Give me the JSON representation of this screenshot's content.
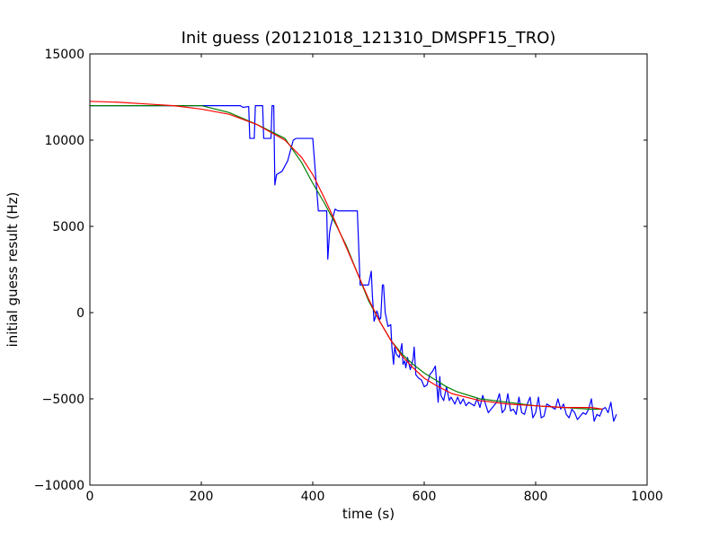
{
  "chart_data": {
    "type": "line",
    "title": "Init guess (20121018_121310_DMSPF15_TRO)",
    "xlabel": "time (s)",
    "ylabel": "initial guess result (Hz)",
    "xlim": [
      0,
      1000
    ],
    "ylim": [
      -10000,
      15000
    ],
    "xticks": [
      0,
      200,
      400,
      600,
      800,
      1000
    ],
    "yticks": [
      -10000,
      -5000,
      0,
      5000,
      10000,
      15000
    ],
    "xtick_labels": [
      "0",
      "200",
      "400",
      "600",
      "800",
      "1000"
    ],
    "ytick_labels": [
      "−10000",
      "−5000",
      "0",
      "5000",
      "10000",
      "15000"
    ],
    "grid": false,
    "legend": "none",
    "series": [
      {
        "color": "#0000ff",
        "x": [
          0,
          50,
          100,
          150,
          200,
          250,
          270,
          275,
          285,
          287,
          295,
          297,
          310,
          312,
          325,
          327,
          330,
          332,
          335,
          345,
          355,
          365,
          370,
          375,
          380,
          390,
          400,
          405,
          410,
          420,
          425,
          427,
          430,
          432,
          440,
          445,
          450,
          460,
          470,
          480,
          485,
          490,
          495,
          500,
          505,
          507,
          510,
          512,
          515,
          520,
          522,
          525,
          527,
          530,
          535,
          540,
          542,
          545,
          547,
          550,
          555,
          560,
          562,
          565,
          567,
          570,
          575,
          580,
          582,
          585,
          590,
          595,
          600,
          605,
          610,
          615,
          620,
          625,
          628,
          630,
          635,
          640,
          645,
          648,
          650,
          655,
          660,
          665,
          670,
          675,
          680,
          685,
          690,
          695,
          700,
          705,
          710,
          715,
          720,
          725,
          730,
          735,
          740,
          745,
          750,
          755,
          760,
          765,
          770,
          775,
          780,
          785,
          790,
          795,
          800,
          805,
          810,
          815,
          820,
          825,
          830,
          835,
          840,
          845,
          850,
          855,
          860,
          865,
          870,
          875,
          880,
          885,
          890,
          895,
          900,
          905,
          910,
          915,
          920,
          925,
          930,
          935,
          940,
          945
        ],
        "y": [
          12000,
          12000,
          12000,
          12000,
          12000,
          12000,
          12000,
          11900,
          11950,
          10100,
          10100,
          12000,
          12000,
          10100,
          10100,
          12000,
          12000,
          7400,
          8000,
          8200,
          8800,
          10000,
          10100,
          10100,
          10100,
          10100,
          10100,
          8000,
          5900,
          5900,
          5900,
          3100,
          4600,
          5000,
          6000,
          5900,
          5900,
          5900,
          5900,
          5900,
          1600,
          1600,
          1600,
          1600,
          2400,
          1000,
          -500,
          -300,
          100,
          -400,
          -300,
          1600,
          1600,
          0,
          -800,
          -700,
          -2000,
          -3000,
          -2000,
          -2400,
          -2600,
          -1800,
          -3000,
          -2800,
          -3200,
          -2600,
          -3300,
          -2700,
          -2000,
          -3600,
          -3800,
          -3900,
          -4300,
          -4200,
          -3600,
          -3400,
          -3100,
          -5200,
          -3700,
          -4800,
          -5100,
          -4300,
          -5100,
          -4900,
          -5000,
          -5300,
          -4900,
          -5300,
          -5000,
          -5400,
          -5200,
          -5300,
          -5400,
          -5000,
          -5500,
          -4800,
          -5300,
          -5800,
          -5600,
          -5400,
          -5200,
          -4700,
          -5800,
          -5600,
          -4700,
          -5700,
          -5600,
          -5900,
          -4900,
          -5800,
          -5900,
          -5300,
          -4900,
          -6100,
          -5800,
          -4900,
          -6100,
          -6000,
          -5300,
          -5400,
          -5500,
          -5600,
          -5000,
          -5600,
          -5300,
          -5900,
          -6100,
          -5600,
          -5800,
          -6200,
          -6000,
          -5800,
          -5900,
          -5600,
          -5000,
          -6300,
          -5900,
          -6000,
          -5600,
          -5500,
          -5800,
          -5200,
          -6300,
          -5900
        ]
      },
      {
        "color": "#008000",
        "x": [
          0,
          100,
          200,
          250,
          300,
          350,
          380,
          400,
          420,
          440,
          460,
          480,
          500,
          520,
          540,
          560,
          580,
          600,
          620,
          640,
          660,
          700,
          750,
          800,
          850,
          900,
          920
        ],
        "y": [
          12000,
          12000,
          12000,
          11600,
          10900,
          10100,
          8700,
          7500,
          6400,
          5200,
          3900,
          2300,
          700,
          -500,
          -1600,
          -2400,
          -3000,
          -3500,
          -3900,
          -4300,
          -4600,
          -5000,
          -5200,
          -5400,
          -5500,
          -5600,
          -5600
        ]
      },
      {
        "color": "#ff0000",
        "x": [
          0,
          50,
          100,
          150,
          200,
          250,
          300,
          350,
          380,
          400,
          420,
          440,
          460,
          480,
          500,
          520,
          540,
          560,
          580,
          600,
          620,
          650,
          700,
          750,
          800,
          850,
          900,
          920
        ],
        "y": [
          12250,
          12200,
          12100,
          12000,
          11800,
          11500,
          10900,
          10000,
          9000,
          8000,
          6700,
          5300,
          3800,
          2300,
          800,
          -500,
          -1600,
          -2500,
          -3200,
          -3800,
          -4200,
          -4700,
          -5100,
          -5300,
          -5400,
          -5500,
          -5500,
          -5600
        ]
      }
    ]
  }
}
